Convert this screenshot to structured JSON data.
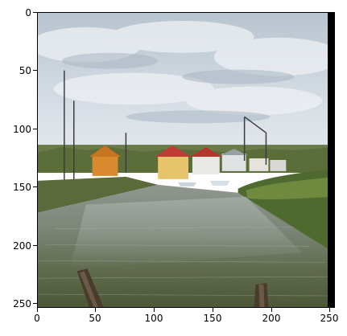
{
  "figure": {
    "x_ticks": [
      "0",
      "50",
      "100",
      "150",
      "200",
      "250"
    ],
    "y_ticks": [
      "0",
      "50",
      "100",
      "150",
      "200",
      "250"
    ]
  },
  "image": {
    "scene": "harbor-channel-with-boats-and-houses",
    "watermark_text": "",
    "colors": {
      "sky_top": "#c8d2db",
      "sky_bottom": "#dfe5ea",
      "water_dark": "#5b6645",
      "water_light": "#9fa7a0",
      "grass": "#5a7035",
      "house_orange": "#d98a2e",
      "house_yellow": "#e6c46b",
      "roof_red": "#c03b33",
      "post_brown": "#4a3c2d",
      "right_border": "#000000"
    }
  }
}
